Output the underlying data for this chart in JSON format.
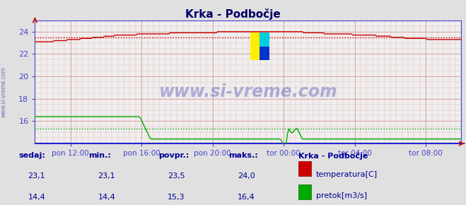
{
  "title": "Krka - Podbočje",
  "bg_color": "#e8e8e8",
  "plot_bg_color": "#f0f0f0",
  "title_color": "#000080",
  "x_tick_labels": [
    "pon 12:00",
    "pon 16:00",
    "pon 20:00",
    "tor 00:00",
    "tor 04:00",
    "tor 08:00"
  ],
  "x_tick_positions": [
    0.0833,
    0.25,
    0.4167,
    0.5833,
    0.75,
    0.9167
  ],
  "y_min": 14.0,
  "y_max": 25.0,
  "y_ticks": [
    16,
    18,
    20,
    22,
    24
  ],
  "temp_color": "#cc0000",
  "flow_color": "#00aa00",
  "height_color": "#0000cc",
  "avg_temp": 23.5,
  "avg_flow": 15.3,
  "axis_color": "#4444cc",
  "grid_color": "#d8aaaa",
  "watermark": "www.si-vreme.com",
  "watermark_color": "#1a1aaa",
  "stats_labels": [
    "sedaj:",
    "min.:",
    "povpr.:",
    "maks.:"
  ],
  "stats_temp": [
    "23,1",
    "23,1",
    "23,5",
    "24,0"
  ],
  "stats_flow": [
    "14,4",
    "14,4",
    "15,3",
    "16,4"
  ],
  "legend_title": "Krka - Podbočje",
  "legend_temp_label": "temperatura[C]",
  "legend_flow_label": "pretok[m3/s]",
  "n_points": 288,
  "sidebar_label": "www.si-vreme.com"
}
